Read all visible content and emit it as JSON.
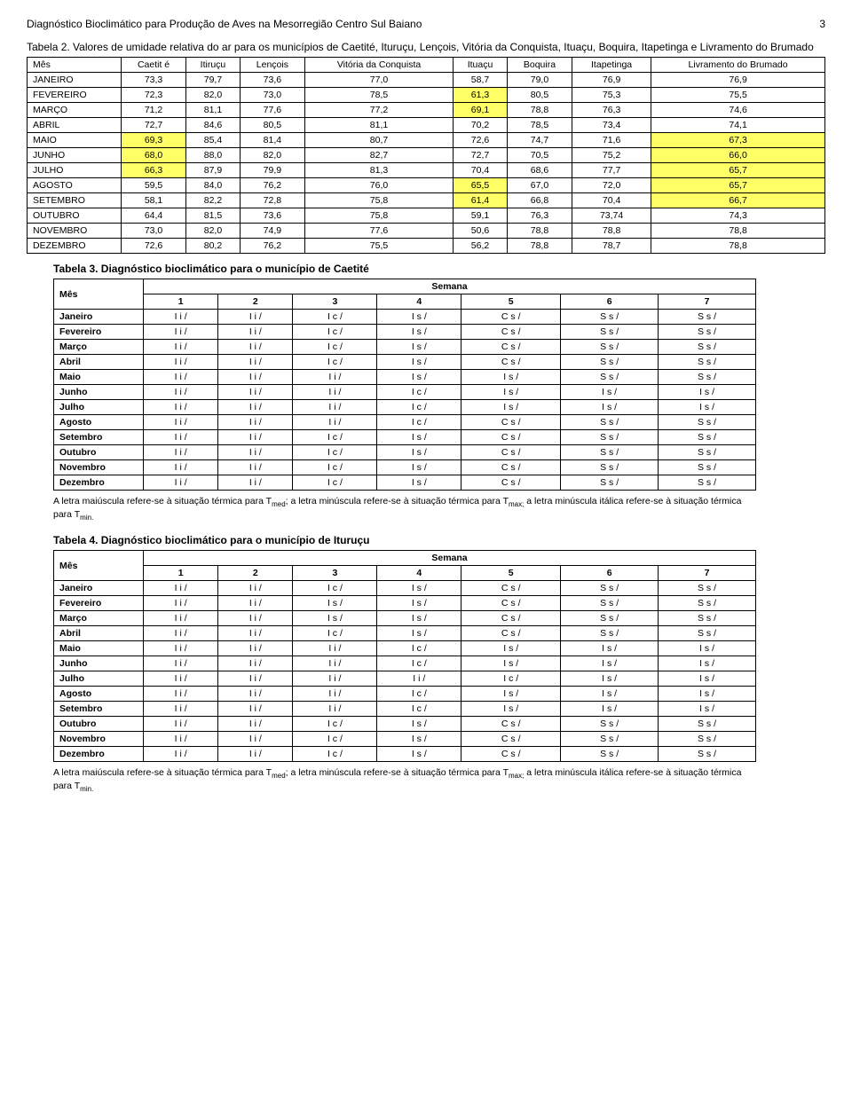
{
  "header": {
    "title": "Diagnóstico Bioclimático para Produção de Aves na Mesorregião Centro Sul Baiano",
    "page_number": "3"
  },
  "table2": {
    "caption": "Tabela 2. Valores de umidade relativa do ar para os municípios de Caetité, Ituruçu, Lençois, Vitória da Conquista, Ituaçu, Boquira, Itapetinga e Livramento do Brumado",
    "columns": [
      "Mês",
      "Caetit é",
      "Itiruçu",
      "Lençois",
      "Vitória da Conquista",
      "Ituaçu",
      "Boquira",
      "Itapetinga",
      "Livramento do Brumado"
    ],
    "rows": [
      {
        "m": "JANEIRO",
        "v": [
          "73,3",
          "79,7",
          "73,6",
          "77,0",
          "58,7",
          "79,0",
          "76,9",
          "76,9"
        ],
        "hl": []
      },
      {
        "m": "FEVEREIRO",
        "v": [
          "72,3",
          "82,0",
          "73,0",
          "78,5",
          "61,3",
          "80,5",
          "75,3",
          "75,5"
        ],
        "hl": [
          4
        ]
      },
      {
        "m": "MARÇO",
        "v": [
          "71,2",
          "81,1",
          "77,6",
          "77,2",
          "69,1",
          "78,8",
          "76,3",
          "74,6"
        ],
        "hl": [
          4
        ]
      },
      {
        "m": "ABRIL",
        "v": [
          "72,7",
          "84,6",
          "80,5",
          "81,1",
          "70,2",
          "78,5",
          "73,4",
          "74,1"
        ],
        "hl": []
      },
      {
        "m": "MAIO",
        "v": [
          "69,3",
          "85,4",
          "81,4",
          "80,7",
          "72,6",
          "74,7",
          "71,6",
          "67,3"
        ],
        "hl": [
          0,
          7
        ]
      },
      {
        "m": "JUNHO",
        "v": [
          "68,0",
          "88,0",
          "82,0",
          "82,7",
          "72,7",
          "70,5",
          "75,2",
          "66,0"
        ],
        "hl": [
          0,
          7
        ]
      },
      {
        "m": "JULHO",
        "v": [
          "66,3",
          "87,9",
          "79,9",
          "81,3",
          "70,4",
          "68,6",
          "77,7",
          "65,7"
        ],
        "hl": [
          0,
          7
        ]
      },
      {
        "m": "AGOSTO",
        "v": [
          "59,5",
          "84,0",
          "76,2",
          "76,0",
          "65,5",
          "67,0",
          "72,0",
          "65,7"
        ],
        "hl": [
          4,
          7
        ]
      },
      {
        "m": "SETEMBRO",
        "v": [
          "58,1",
          "82,2",
          "72,8",
          "75,8",
          "61,4",
          "66,8",
          "70,4",
          "66,7"
        ],
        "hl": [
          4,
          7
        ]
      },
      {
        "m": "OUTUBRO",
        "v": [
          "64,4",
          "81,5",
          "73,6",
          "75,8",
          "59,1",
          "76,3",
          "73,74",
          "74,3"
        ],
        "hl": []
      },
      {
        "m": "NOVEMBRO",
        "v": [
          "73,0",
          "82,0",
          "74,9",
          "77,6",
          "50,6",
          "78,8",
          "78,8",
          "78,8"
        ],
        "hl": []
      },
      {
        "m": "DEZEMBRO",
        "v": [
          "72,6",
          "80,2",
          "76,2",
          "75,5",
          "56,2",
          "78,8",
          "78,7",
          "78,8"
        ],
        "hl": []
      }
    ]
  },
  "table3": {
    "caption": "Tabela 3. Diagnóstico bioclimático para o município de Caetité",
    "header_top": "Semana",
    "header_mes": "Mês",
    "weeks": [
      "1",
      "2",
      "3",
      "4",
      "5",
      "6",
      "7"
    ],
    "rows": [
      {
        "m": "Janeiro",
        "v": [
          "I i /",
          "I i /",
          "I c /",
          "I s /",
          "C s /",
          "S s /",
          "S s /"
        ]
      },
      {
        "m": "Fevereiro",
        "v": [
          "I i /",
          "I i /",
          "I c /",
          "I s /",
          "C s /",
          "S s /",
          "S s /"
        ]
      },
      {
        "m": "Março",
        "v": [
          "I i /",
          "I i /",
          "I c /",
          "I s /",
          "C s /",
          "S s /",
          "S s /"
        ]
      },
      {
        "m": "Abril",
        "v": [
          "I i /",
          "I i /",
          "I c /",
          "I s /",
          "C s /",
          "S s /",
          "S s /"
        ]
      },
      {
        "m": "Maio",
        "v": [
          "I i /",
          "I i /",
          "I i /",
          "I s /",
          "I s /",
          "S s /",
          "S s /"
        ]
      },
      {
        "m": "Junho",
        "v": [
          "I i /",
          "I i /",
          "I i /",
          "I c /",
          "I s /",
          "I s /",
          "I s /"
        ]
      },
      {
        "m": "Julho",
        "v": [
          "I i /",
          "I i /",
          "I i /",
          "I c /",
          "I s /",
          "I s /",
          "I s /"
        ]
      },
      {
        "m": "Agosto",
        "v": [
          "I i /",
          "I i /",
          "I i /",
          "I c /",
          "C s /",
          "S s /",
          "S s /"
        ]
      },
      {
        "m": "Setembro",
        "v": [
          "I i /",
          "I i /",
          "I c /",
          "I s /",
          "C s /",
          "S s /",
          "S s /"
        ]
      },
      {
        "m": "Outubro",
        "v": [
          "I i /",
          "I i /",
          "I c /",
          "I s /",
          "C s /",
          "S s /",
          "S s /"
        ]
      },
      {
        "m": "Novembro",
        "v": [
          "I i /",
          "I i /",
          "I c /",
          "I s /",
          "C s /",
          "S s /",
          "S s /"
        ]
      },
      {
        "m": "Dezembro",
        "v": [
          "I i /",
          "I i /",
          "I c /",
          "I s /",
          "C s /",
          "S s /",
          "S s /"
        ]
      }
    ]
  },
  "table4": {
    "caption": "Tabela 4. Diagnóstico bioclimático para o município de Ituruçu",
    "header_top": "Semana",
    "header_mes": "Mês",
    "weeks": [
      "1",
      "2",
      "3",
      "4",
      "5",
      "6",
      "7"
    ],
    "rows": [
      {
        "m": "Janeiro",
        "v": [
          "I i /",
          "I i /",
          "I c /",
          "I s /",
          "C s /",
          "S s /",
          "S s /"
        ]
      },
      {
        "m": "Fevereiro",
        "v": [
          "I i /",
          "I i /",
          "I s /",
          "I s /",
          "C s /",
          "S s /",
          "S s /"
        ]
      },
      {
        "m": "Março",
        "v": [
          "I i /",
          "I i /",
          "I s /",
          "I s /",
          "C s /",
          "S s /",
          "S s /"
        ]
      },
      {
        "m": "Abril",
        "v": [
          "I i /",
          "I i /",
          "I c /",
          "I s /",
          "C s /",
          "S s /",
          "S s /"
        ]
      },
      {
        "m": "Maio",
        "v": [
          "I i /",
          "I i /",
          "I i /",
          "I c /",
          "I s /",
          "I s /",
          "I s /"
        ]
      },
      {
        "m": "Junho",
        "v": [
          "I i /",
          "I i /",
          "I i /",
          "I c /",
          "I s /",
          "I s /",
          "I s /"
        ]
      },
      {
        "m": "Julho",
        "v": [
          "I i /",
          "I i /",
          "I i /",
          "I i /",
          "I c /",
          "I s /",
          "I s /"
        ]
      },
      {
        "m": "Agosto",
        "v": [
          "I i /",
          "I i /",
          "I i /",
          "I c /",
          "I s /",
          "I s /",
          "I s /"
        ]
      },
      {
        "m": "Setembro",
        "v": [
          "I i /",
          "I i /",
          "I i /",
          "I c /",
          "I s /",
          "I s /",
          "I s /"
        ]
      },
      {
        "m": "Outubro",
        "v": [
          "I i /",
          "I i /",
          "I c /",
          "I s /",
          "C s /",
          "S s /",
          "S s /"
        ]
      },
      {
        "m": "Novembro",
        "v": [
          "I i /",
          "I i /",
          "I c /",
          "I s /",
          "C s /",
          "S s /",
          "S s /"
        ]
      },
      {
        "m": "Dezembro",
        "v": [
          "I i /",
          "I i /",
          "I c /",
          "I s /",
          "C s /",
          "S s /",
          "S s /"
        ]
      }
    ]
  },
  "footnote": {
    "part1": "A letra maiúscula refere-se à situação térmica para T",
    "sub1": "med",
    "part2": "; a letra minúscula refere-se à situação térmica para T",
    "sub2": "max;",
    "part3": " a letra minúscula itálica refere-se à situação térmica para T",
    "sub3": "min.",
    "alt_part3": " a letra minúscula itálica refere-se à situação térmica para T"
  }
}
